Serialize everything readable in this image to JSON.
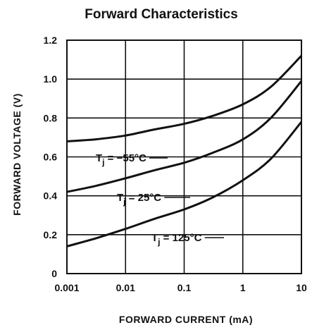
{
  "chart_data": {
    "type": "line",
    "title": "Forward Characteristics",
    "xlabel": "FORWARD CURRENT (mA)",
    "ylabel": "FORWARD VOLTAGE (V)",
    "x_scale": "log",
    "xlim": [
      0.001,
      10
    ],
    "ylim": [
      0,
      1.2
    ],
    "grid": true,
    "x_ticks": [
      "0.001",
      "0.01",
      "0.1",
      "1",
      "10"
    ],
    "x_tick_values": [
      0.001,
      0.01,
      0.1,
      1,
      10
    ],
    "y_ticks": [
      "0",
      "0.2",
      "0.4",
      "0.6",
      "0.8",
      "1.0",
      "1.2"
    ],
    "y_tick_values": [
      0,
      0.2,
      0.4,
      0.6,
      0.8,
      1.0,
      1.2
    ],
    "series": [
      {
        "name": "Tj = -55°C",
        "label_main": "T",
        "label_sub": "j",
        "label_rest": " = −55°C",
        "x": [
          0.001,
          0.003,
          0.01,
          0.03,
          0.1,
          0.3,
          1,
          3,
          10
        ],
        "y": [
          0.68,
          0.69,
          0.71,
          0.74,
          0.77,
          0.81,
          0.87,
          0.96,
          1.12
        ]
      },
      {
        "name": "Tj = 25°C",
        "label_main": "T",
        "label_sub": "j",
        "label_rest": " = 25°C",
        "x": [
          0.001,
          0.003,
          0.01,
          0.03,
          0.1,
          0.3,
          1,
          3,
          10
        ],
        "y": [
          0.42,
          0.45,
          0.49,
          0.53,
          0.57,
          0.62,
          0.69,
          0.8,
          0.99
        ]
      },
      {
        "name": "Tj = 125°C",
        "label_main": "T",
        "label_sub": "j",
        "label_rest": " = 125°C",
        "x": [
          0.001,
          0.003,
          0.01,
          0.03,
          0.1,
          0.3,
          1,
          3,
          10
        ],
        "y": [
          0.14,
          0.18,
          0.23,
          0.28,
          0.33,
          0.39,
          0.48,
          0.59,
          0.78
        ]
      }
    ]
  }
}
